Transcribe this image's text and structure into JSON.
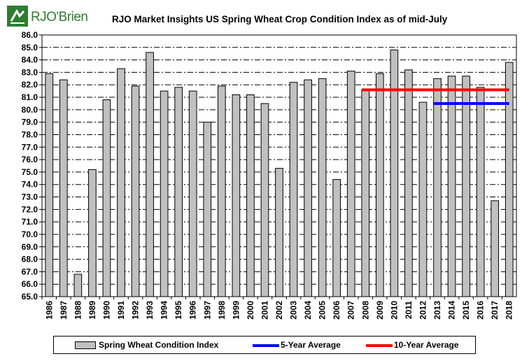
{
  "logo": {
    "text": "RJO'Brien"
  },
  "chart_data": {
    "type": "bar",
    "title": "RJO Market Insights US Spring Wheat Crop Condition Index as of mid-July",
    "xlabel": "",
    "ylabel": "",
    "ylim": [
      65.0,
      86.0
    ],
    "ytick_step": 1.0,
    "grid": true,
    "legend_position": "bottom",
    "categories": [
      "1986",
      "1987",
      "1988",
      "1989",
      "1990",
      "1991",
      "1992",
      "1993",
      "1994",
      "1995",
      "1996",
      "1997",
      "1998",
      "1999",
      "2000",
      "2001",
      "2002",
      "2003",
      "2004",
      "2005",
      "2006",
      "2007",
      "2008",
      "2009",
      "2010",
      "2011",
      "2012",
      "2013",
      "2014",
      "2015",
      "2016",
      "2017",
      "2018"
    ],
    "series": [
      {
        "name": "Spring Wheat Condition Index",
        "values": [
          82.9,
          82.4,
          66.8,
          75.2,
          80.8,
          83.3,
          81.9,
          84.6,
          81.5,
          81.8,
          81.5,
          79.0,
          81.9,
          81.2,
          81.2,
          80.5,
          75.3,
          82.2,
          82.4,
          82.5,
          74.4,
          83.1,
          81.6,
          82.9,
          84.8,
          83.2,
          80.6,
          82.5,
          82.7,
          82.7,
          81.8,
          72.7,
          83.8
        ],
        "color": "#c0c0c0"
      },
      {
        "name": "5-Year Average",
        "type": "line",
        "color": "#0000ff",
        "x_start": "2013",
        "x_end": "2018",
        "value": 80.5
      },
      {
        "name": "10-Year Average",
        "type": "line",
        "color": "#ff0000",
        "x_start": "2008",
        "x_end": "2018",
        "value": 81.6
      }
    ]
  }
}
